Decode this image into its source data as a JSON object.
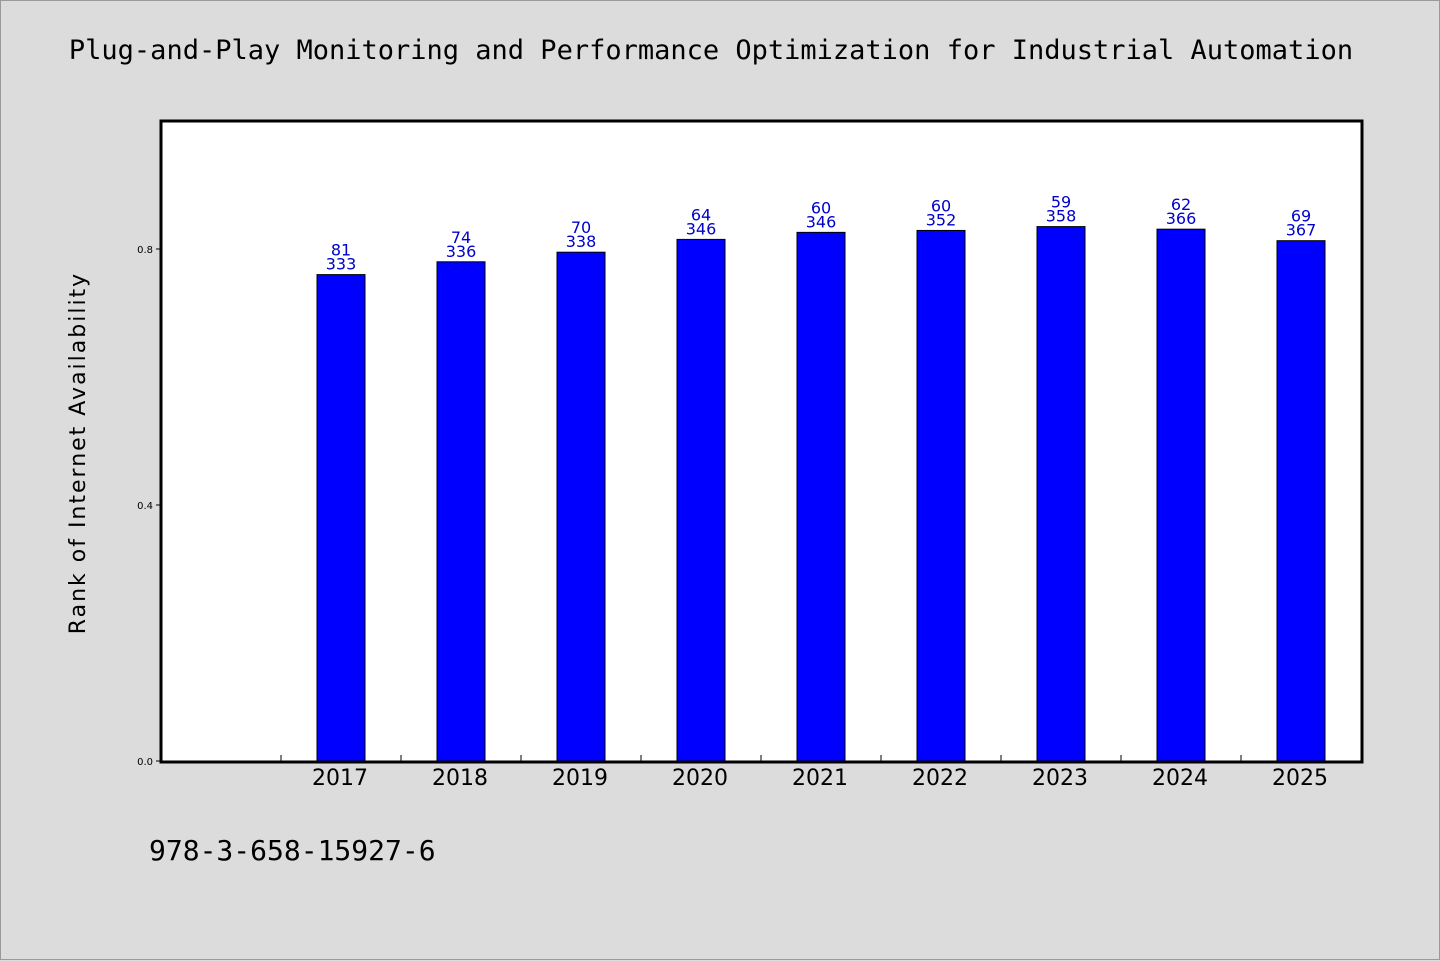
{
  "chart_data": {
    "type": "bar",
    "title": "Plug-and-Play Monitoring and Performance Optimization for Industrial Automation",
    "xlabel": "",
    "ylabel": "Rank of Internet Availability",
    "categories": [
      "2017",
      "2018",
      "2019",
      "2020",
      "2021",
      "2022",
      "2023",
      "2024",
      "2025"
    ],
    "values": [
      0.76,
      0.78,
      0.795,
      0.815,
      0.826,
      0.829,
      0.835,
      0.831,
      0.813
    ],
    "labels_top": [
      "81",
      "74",
      "70",
      "64",
      "60",
      "60",
      "59",
      "62",
      "69"
    ],
    "labels_bottom": [
      "333",
      "336",
      "338",
      "346",
      "346",
      "352",
      "358",
      "366",
      "367"
    ],
    "yticks": [
      "0.0",
      "0.4",
      "0.8"
    ],
    "ylim": [
      0,
      1.0
    ],
    "grid": false,
    "bar_color": "#0000ff",
    "label_color": "#0000cc"
  },
  "footer": {
    "isbn": "978-3-658-15927-6"
  }
}
